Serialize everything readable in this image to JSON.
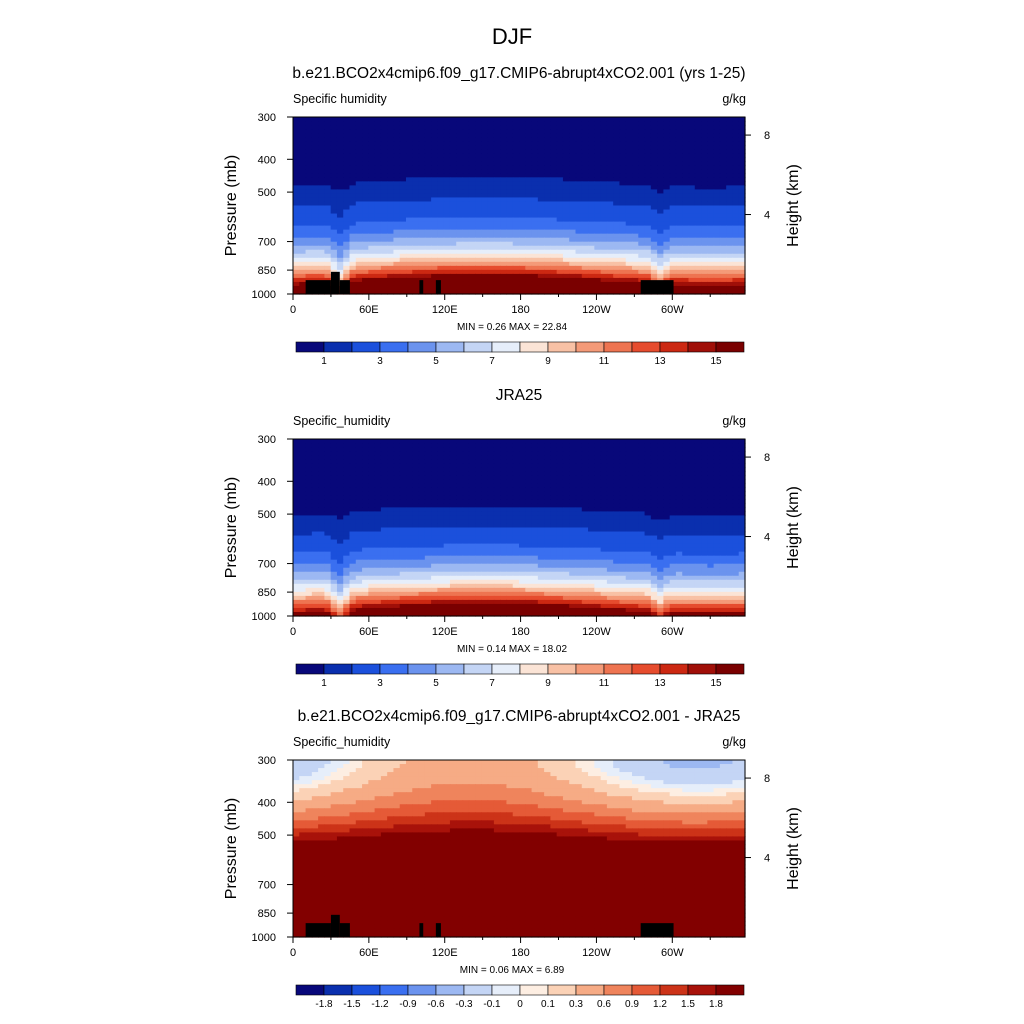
{
  "figure": {
    "title": "DJF"
  },
  "colors": {
    "seq_palette": [
      "#08087a",
      "#0a2fae",
      "#1b50dc",
      "#3a6ff0",
      "#6b93ee",
      "#9cb8f2",
      "#c4d5f5",
      "#e6eefa",
      "#fbe4d6",
      "#f8c1a5",
      "#f49a78",
      "#ee7451",
      "#e64c2e",
      "#cc2812",
      "#a00f08",
      "#7a0000"
    ],
    "diff_palette": [
      "#08087a",
      "#0a2fae",
      "#1b50dc",
      "#3a6ff0",
      "#6b93ee",
      "#9cb8f2",
      "#c4d5f5",
      "#e6eefa",
      "#fdeee2",
      "#fbd2b6",
      "#f6ab85",
      "#ef845c",
      "#e55a37",
      "#cc3318",
      "#a8120a",
      "#820000"
    ],
    "land_mask": "#000000"
  },
  "chart_data": [
    {
      "type": "contour",
      "title": "b.e21.BCO2x4cmip6.f09_g17.CMIP6-abrupt4xCO2.001 (yrs 1-25)",
      "left_label": "Specific humidity",
      "right_label": "g/kg",
      "ylabel": "Pressure (mb)",
      "y2label": "Height (km)",
      "x_ticks": [
        "0",
        "60E",
        "120E",
        "180",
        "120W",
        "60W"
      ],
      "x_tick_lon": [
        0,
        60,
        120,
        180,
        240,
        300
      ],
      "xlim": [
        0,
        357.5
      ],
      "y_ticks": [
        "300",
        "400",
        "500",
        "700",
        "850",
        "1000"
      ],
      "y_tick_p": [
        300,
        400,
        500,
        700,
        850,
        1000
      ],
      "ylim": [
        1000,
        300
      ],
      "y2_ticks": [
        "8",
        "4"
      ],
      "y2_tick_km": [
        8,
        4
      ],
      "stats": "MIN =   0.26  MAX =  22.84",
      "colorbar_labels": [
        "1",
        "3",
        "5",
        "7",
        "9",
        "11",
        "13",
        "15"
      ],
      "levels": [
        0.5,
        1,
        2,
        3,
        4,
        5,
        6,
        7,
        8,
        9,
        10,
        11,
        12,
        13,
        14,
        15
      ],
      "min": 0.26,
      "max": 22.84
    },
    {
      "type": "contour",
      "title": "JRA25",
      "left_label": "Specific_humidity",
      "right_label": "g/kg",
      "ylabel": "Pressure (mb)",
      "y2label": "Height (km)",
      "x_ticks": [
        "0",
        "60E",
        "120E",
        "180",
        "120W",
        "60W"
      ],
      "x_tick_lon": [
        0,
        60,
        120,
        180,
        240,
        300
      ],
      "xlim": [
        0,
        357.5
      ],
      "y_ticks": [
        "300",
        "400",
        "500",
        "700",
        "850",
        "1000"
      ],
      "y_tick_p": [
        300,
        400,
        500,
        700,
        850,
        1000
      ],
      "ylim": [
        1000,
        300
      ],
      "y2_ticks": [
        "8",
        "4"
      ],
      "y2_tick_km": [
        8,
        4
      ],
      "stats": "MIN =   0.14  MAX =  18.02",
      "colorbar_labels": [
        "1",
        "3",
        "5",
        "7",
        "9",
        "11",
        "13",
        "15"
      ],
      "levels": [
        0.5,
        1,
        2,
        3,
        4,
        5,
        6,
        7,
        8,
        9,
        10,
        11,
        12,
        13,
        14,
        15
      ],
      "min": 0.14,
      "max": 18.02
    },
    {
      "type": "contour",
      "title": "b.e21.BCO2x4cmip6.f09_g17.CMIP6-abrupt4xCO2.001 - JRA25",
      "left_label": "Specific_humidity",
      "right_label": "g/kg",
      "ylabel": "Pressure (mb)",
      "y2label": "Height (km)",
      "x_ticks": [
        "0",
        "60E",
        "120E",
        "180",
        "120W",
        "60W"
      ],
      "x_tick_lon": [
        0,
        60,
        120,
        180,
        240,
        300
      ],
      "xlim": [
        0,
        357.5
      ],
      "y_ticks": [
        "300",
        "400",
        "500",
        "700",
        "850",
        "1000"
      ],
      "y_tick_p": [
        300,
        400,
        500,
        700,
        850,
        1000
      ],
      "ylim": [
        1000,
        300
      ],
      "y2_ticks": [
        "8",
        "4"
      ],
      "y2_tick_km": [
        8,
        4
      ],
      "stats": "MIN =   0.06  MAX =   6.89",
      "colorbar_labels": [
        "-1.8",
        "-1.5",
        "-1.2",
        "-0.9",
        "-0.6",
        "-0.3",
        "-0.1",
        "0",
        "0.1",
        "0.3",
        "0.6",
        "0.9",
        "1.2",
        "1.5",
        "1.8"
      ],
      "levels": [
        -1.8,
        -1.5,
        -1.2,
        -0.9,
        -0.6,
        -0.3,
        -0.1,
        0,
        0.1,
        0.3,
        0.6,
        0.9,
        1.2,
        1.5,
        1.8
      ],
      "min": 0.06,
      "max": 6.89
    }
  ]
}
